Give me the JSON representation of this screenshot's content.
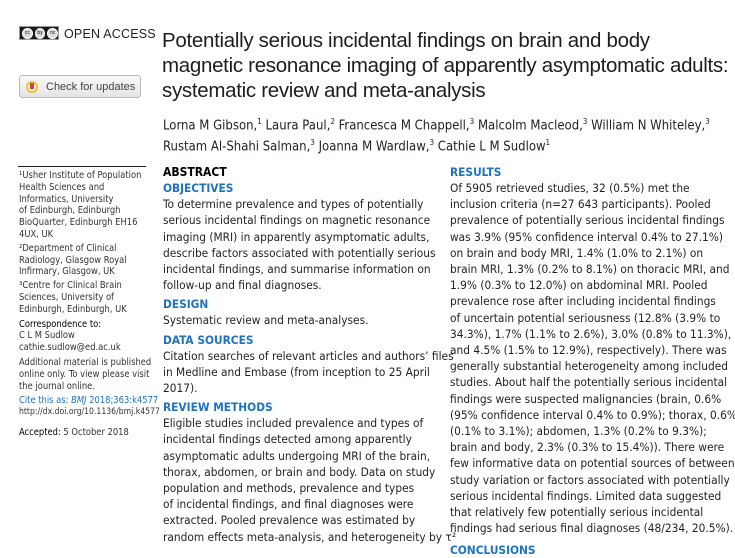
{
  "header": {
    "cc_badge": [
      "cc",
      "by",
      "nc"
    ],
    "open_access": "OPEN ACCESS",
    "check_updates": "Check for updates"
  },
  "title_lines": [
    "Potentially serious incidental findings on brain and body",
    "magnetic resonance imaging of apparently asymptomatic adults:",
    "systematic review and meta-analysis"
  ],
  "authors": [
    [
      {
        "n": "Lorna M Gibson,",
        "s": "1"
      },
      {
        "n": " Laura Paul,",
        "s": "2"
      },
      {
        "n": " Francesca M Chappell,",
        "s": "3"
      },
      {
        "n": " Malcolm Macleod,",
        "s": "3"
      },
      {
        "n": " William N Whiteley,",
        "s": "3"
      }
    ],
    [
      {
        "n": "Rustam Al-Shahi Salman,",
        "s": "3"
      },
      {
        "n": " Joanna M Wardlaw,",
        "s": "3"
      },
      {
        "n": " Cathie L M Sudlow",
        "s": "1"
      }
    ]
  ],
  "sidebar": {
    "affiliations": [
      [
        "¹Usher Institute of Population",
        "Health Sciences and",
        "Informatics, University",
        "of Edinburgh, Edinburgh",
        "BioQuarter, Edinburgh EH16",
        "4UX, UK"
      ],
      [
        "²Department of Clinical",
        "Radiology, Glasgow Royal",
        "Infirmary, Glasgow, UK"
      ],
      [
        "³Centre for Clinical Brain",
        "Sciences, University of",
        "Edinburgh, Edinburgh, UK"
      ]
    ],
    "correspondence_label": "Correspondence to:",
    "correspondence_name": "C L M Sudlow",
    "correspondence_email": "cathie.sudlow@ed.ac.uk",
    "additional": [
      "Additional material is published",
      "online only. To view please visit",
      "the journal online."
    ],
    "cite_label": "Cite this as: ",
    "cite_journal": "BMJ",
    "cite_ref": " 2018;363:k4577",
    "doi": "http://dx.doi.org/10.1136/bmj.k4577",
    "accepted_label": "Accepted:",
    "accepted_date": " 5 October 2018"
  },
  "abstract": {
    "heading": "ABSTRACT",
    "sections": [
      {
        "h": "OBJECTIVES",
        "lines": [
          "To determine prevalence and types of potentially",
          "serious incidental findings on magnetic resonance",
          "imaging (MRI) in apparently asymptomatic adults,",
          "describe factors associated with potentially serious",
          "incidental findings, and summarise information on",
          "follow-up and final diagnoses."
        ]
      },
      {
        "h": "DESIGN",
        "lines": [
          "Systematic review and meta-analyses."
        ]
      },
      {
        "h": "DATA SOURCES",
        "lines": [
          "Citation searches of relevant articles and authors’ files",
          "in Medline and Embase (from inception to 25 April",
          "2017)."
        ]
      },
      {
        "h": "REVIEW METHODS",
        "lines": [
          "Eligible studies included prevalence and types of",
          "incidental findings detected among apparently",
          "asymptomatic adults undergoing MRI of the brain,",
          "thorax, abdomen, or brain and body. Data on study",
          "population and methods, prevalence and types",
          "of incidental findings, and final diagnoses were",
          "extracted. Pooled prevalence was estimated by",
          "random effects meta-analysis, and heterogeneity by τ²"
        ]
      }
    ],
    "results": {
      "h": "RESULTS",
      "lines": [
        "Of 5905 retrieved studies, 32 (0.5%) met the",
        "inclusion criteria (n=27 643 participants). Pooled",
        "prevalence of potentially serious incidental findings",
        "was 3.9% (95% confidence interval 0.4% to 27.1%)",
        "on brain and body MRI, 1.4% (1.0% to 2.1%) on",
        "brain MRI, 1.3% (0.2% to 8.1%) on thoracic MRI, and",
        "1.9% (0.3% to 12.0%) on abdominal MRI. Pooled",
        "prevalence rose after including incidental findings",
        "of uncertain potential seriousness (12.8% (3.9% to",
        "34.3%), 1.7% (1.1% to 2.6%), 3.0% (0.8% to 11.3%),",
        "and 4.5% (1.5% to 12.9%), respectively). There was",
        "generally substantial heterogeneity among included",
        "studies. About half the potentially serious incidental",
        "findings were suspected malignancies (brain, 0.6%",
        "(95% confidence interval 0.4% to 0.9%); thorax, 0.6%",
        "(0.1% to 3.1%); abdomen, 1.3% (0.2% to 9.3%);",
        "brain and body, 2.3% (0.3% to 15.4%)). There were",
        "few informative data on potential sources of between-",
        "study variation or factors associated with potentially",
        "serious incidental findings. Limited data suggested",
        "that relatively few potentially serious incidental",
        "findings had serious final diagnoses (48/234, 20.5%)."
      ]
    },
    "next_heading": "CONCLUSIONS"
  }
}
